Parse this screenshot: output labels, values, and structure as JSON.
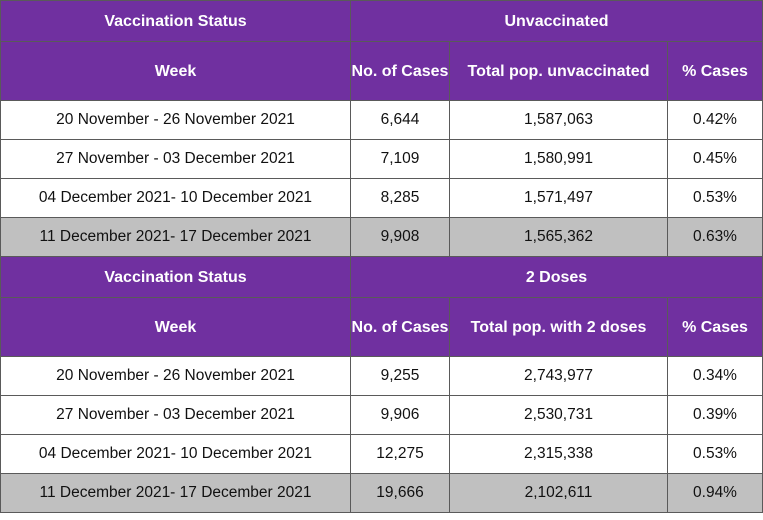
{
  "sections": [
    {
      "status_header": "Vaccination Status",
      "group_label": "Unvaccinated",
      "columns": [
        "Week",
        "No. of Cases",
        "Total pop. unvaccinated",
        "% Cases"
      ],
      "rows": [
        {
          "week": "20 November - 26 November 2021",
          "cases": "6,644",
          "pop": "1,587,063",
          "pct": "0.42%"
        },
        {
          "week": "27 November - 03 December 2021",
          "cases": "7,109",
          "pop": "1,580,991",
          "pct": "0.45%"
        },
        {
          "week": "04 December 2021- 10 December 2021",
          "cases": "8,285",
          "pop": "1,571,497",
          "pct": "0.53%"
        },
        {
          "week": "11 December 2021- 17 December 2021",
          "cases": "9,908",
          "pop": "1,565,362",
          "pct": "0.63%"
        }
      ]
    },
    {
      "status_header": "Vaccination Status",
      "group_label": "2 Doses",
      "columns": [
        "Week",
        "No. of Cases",
        "Total pop. with 2 doses",
        "% Cases"
      ],
      "rows": [
        {
          "week": "20 November - 26 November 2021",
          "cases": "9,255",
          "pop": "2,743,977",
          "pct": "0.34%"
        },
        {
          "week": "27 November - 03 December 2021",
          "cases": "9,906",
          "pop": "2,530,731",
          "pct": "0.39%"
        },
        {
          "week": "04 December 2021- 10 December 2021",
          "cases": "12,275",
          "pop": "2,315,338",
          "pct": "0.53%"
        },
        {
          "week": "11 December 2021- 17 December 2021",
          "cases": "19,666",
          "pop": "2,102,611",
          "pct": "0.94%"
        }
      ]
    }
  ],
  "colors": {
    "header_bg": "#7030a0",
    "header_text": "#ffffff",
    "highlight_row": "#c0c0c0"
  }
}
